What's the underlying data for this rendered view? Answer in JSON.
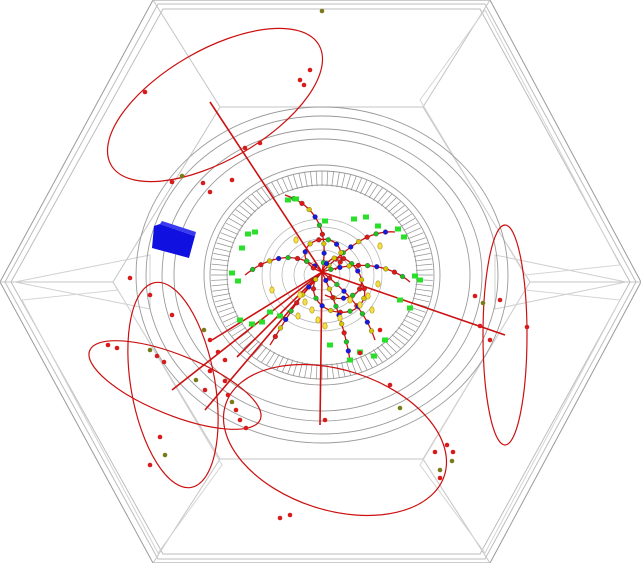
{
  "display": {
    "background": "#ffffff",
    "colors": {
      "detector_outline": "#9a9a9a",
      "detector_frame": "#bdbdbd",
      "calorimeter_segments": "#8f8f8f",
      "track": "#cc1010",
      "muon_hit": "#d81a1a",
      "muon_hit_alt": "#7a7a1a",
      "tracker_hit": "#28e028",
      "vertex_red": "#e01818",
      "vertex_green": "#20c020",
      "vertex_blue": "#1818e0",
      "vertex_yellow": "#d8c400",
      "energy_deposit": "#d8c400",
      "muon_chamber_block": "#1010e0"
    },
    "icons": [
      "muon-chamber-block-icon"
    ]
  }
}
